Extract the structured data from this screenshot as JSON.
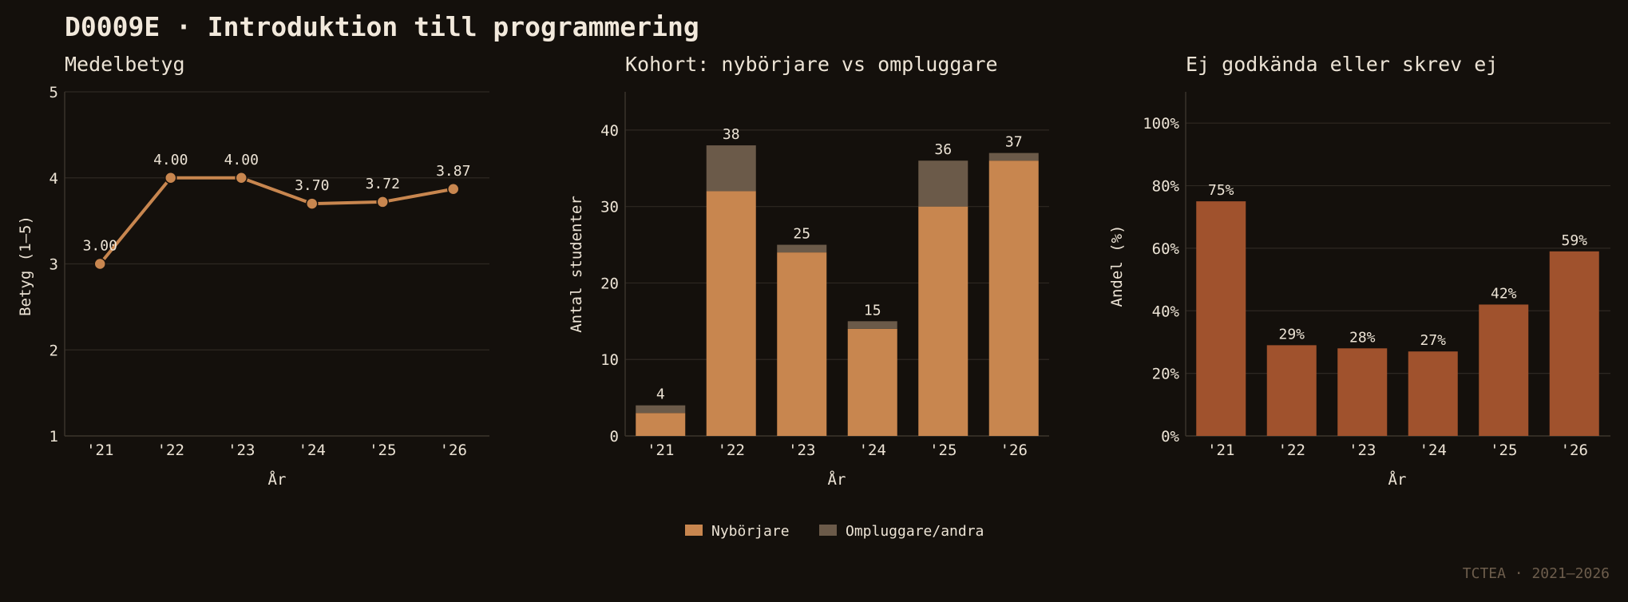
{
  "title": "D0009E · Introduktion till programmering",
  "footer": "TCTEA · 2021–2026",
  "colors": {
    "background": "#14100c",
    "grid": "#2e2822",
    "axis": "#3a332b",
    "text": "#ece3d5",
    "line": "#c8864f",
    "nyborjare": "#c8864f",
    "ompluggare": "#6b5a49",
    "fail": "#a0522d"
  },
  "chart_data": [
    {
      "type": "line",
      "title": "Medelbetyg",
      "xlabel": "År",
      "ylabel": "Betyg (1–5)",
      "categories": [
        "'21",
        "'22",
        "'23",
        "'24",
        "'25",
        "'26"
      ],
      "values": [
        3.0,
        4.0,
        4.0,
        3.7,
        3.72,
        3.87
      ],
      "value_labels": [
        "3.00",
        "4.00",
        "4.00",
        "3.70",
        "3.72",
        "3.87"
      ],
      "ylim": [
        1,
        5
      ],
      "yticks": [
        1,
        2,
        3,
        4,
        5
      ],
      "ytick_labels": [
        "1",
        "2",
        "3",
        "4",
        "5"
      ],
      "grid": true
    },
    {
      "type": "bar",
      "stacked": true,
      "title": "Kohort: nybörjare vs ompluggare",
      "xlabel": "År",
      "ylabel": "Antal studenter",
      "categories": [
        "'21",
        "'22",
        "'23",
        "'24",
        "'25",
        "'26"
      ],
      "series": [
        {
          "name": "Nybörjare",
          "values": [
            3,
            32,
            24,
            14,
            30,
            36
          ]
        },
        {
          "name": "Ompluggare/andra",
          "values": [
            1,
            6,
            1,
            1,
            6,
            1
          ]
        }
      ],
      "total_labels": [
        "4",
        "38",
        "25",
        "15",
        "36",
        "37"
      ],
      "ylim": [
        0,
        45
      ],
      "yticks": [
        0,
        10,
        20,
        30,
        40
      ],
      "ytick_labels": [
        "0",
        "10",
        "20",
        "30",
        "40"
      ],
      "grid": true,
      "legend": "bottom-center"
    },
    {
      "type": "bar",
      "title": "Ej godkända eller skrev ej",
      "xlabel": "År",
      "ylabel": "Andel (%)",
      "categories": [
        "'21",
        "'22",
        "'23",
        "'24",
        "'25",
        "'26"
      ],
      "values": [
        75,
        29,
        28,
        27,
        42,
        59
      ],
      "value_labels": [
        "75%",
        "29%",
        "28%",
        "27%",
        "42%",
        "59%"
      ],
      "ylim": [
        0,
        110
      ],
      "yticks": [
        0,
        20,
        40,
        60,
        80,
        100
      ],
      "ytick_labels": [
        "0%",
        "20%",
        "40%",
        "60%",
        "80%",
        "100%"
      ],
      "grid": true
    }
  ]
}
